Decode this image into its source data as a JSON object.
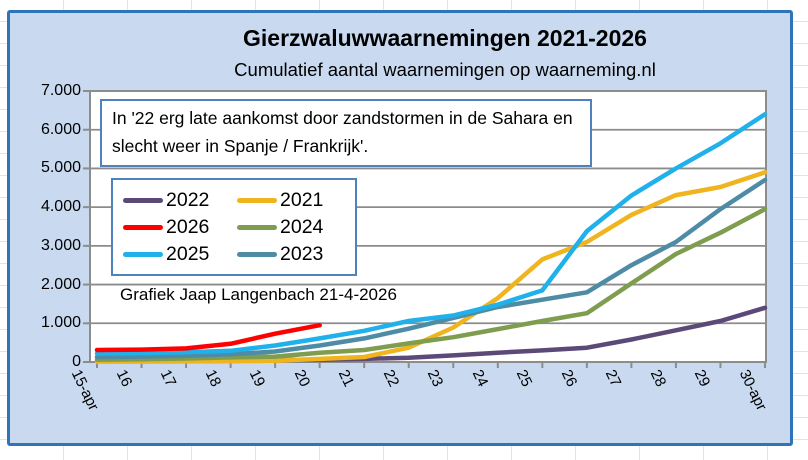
{
  "window": {
    "app_context": "spreadsheet-embedded-chart"
  },
  "chart_data": {
    "type": "line",
    "title": "Gierzwaluwwaarnemingen 2021-2026",
    "subtitle": "Cumulatief aantal waarnemingen op waarneming.nl",
    "xlabel": "",
    "ylabel": "",
    "ylim": [
      0,
      7000
    ],
    "grid": true,
    "legend_position": "upper-left",
    "x_labels": [
      "15-apr",
      "16",
      "17",
      "18",
      "19",
      "20",
      "21",
      "22",
      "23",
      "24",
      "25",
      "26",
      "27",
      "28",
      "29",
      "30-apr"
    ],
    "y_tick_labels": [
      "0",
      "1.000",
      "2.000",
      "3.000",
      "4.000",
      "5.000",
      "6.000",
      "7.000"
    ],
    "series": [
      {
        "name": "2022",
        "color": "#5B4A78",
        "values": [
          20,
          25,
          30,
          40,
          50,
          60,
          80,
          110,
          170,
          240,
          300,
          370,
          580,
          820,
          1060,
          1400
        ]
      },
      {
        "name": "2021",
        "color": "#F0B41E",
        "values": [
          10,
          10,
          15,
          20,
          30,
          80,
          130,
          370,
          890,
          1650,
          2650,
          3100,
          3800,
          4310,
          4520,
          4900
        ]
      },
      {
        "name": "2024",
        "color": "#7E9D4E",
        "values": [
          60,
          70,
          90,
          120,
          140,
          240,
          310,
          480,
          640,
          850,
          1060,
          1260,
          2030,
          2790,
          3340,
          3950
        ]
      },
      {
        "name": "2023",
        "color": "#4E8CA6",
        "values": [
          130,
          140,
          160,
          200,
          270,
          425,
          610,
          860,
          1140,
          1420,
          1610,
          1800,
          2500,
          3100,
          3950,
          4700
        ]
      },
      {
        "name": "2025",
        "color": "#20B0EA",
        "values": [
          220,
          230,
          250,
          290,
          425,
          610,
          805,
          1060,
          1200,
          1480,
          1850,
          3380,
          4300,
          5000,
          5650,
          6400
        ]
      },
      {
        "name": "2026",
        "color": "#FF0000",
        "values": [
          310,
          320,
          350,
          470,
          730,
          950,
          null,
          null,
          null,
          null,
          null,
          null,
          null,
          null,
          null,
          null
        ]
      }
    ],
    "legend_order": [
      "2022",
      "2021",
      "2026",
      "2024",
      "2025",
      "2023"
    ],
    "annotation": "In '22  erg late aankomst door zandstormen in de Sahara en slecht weer in Spanje / Frankrijk'.",
    "credit": "Grafiek Jaap Langenbach 21-4-2026"
  },
  "style": {
    "chart_background": "#C8D9F0",
    "chart_border": "#2E74B6",
    "plot_background": "#FFFFFF",
    "gridline_color": "#8C8C8C",
    "box_border": "#4F81BD"
  }
}
